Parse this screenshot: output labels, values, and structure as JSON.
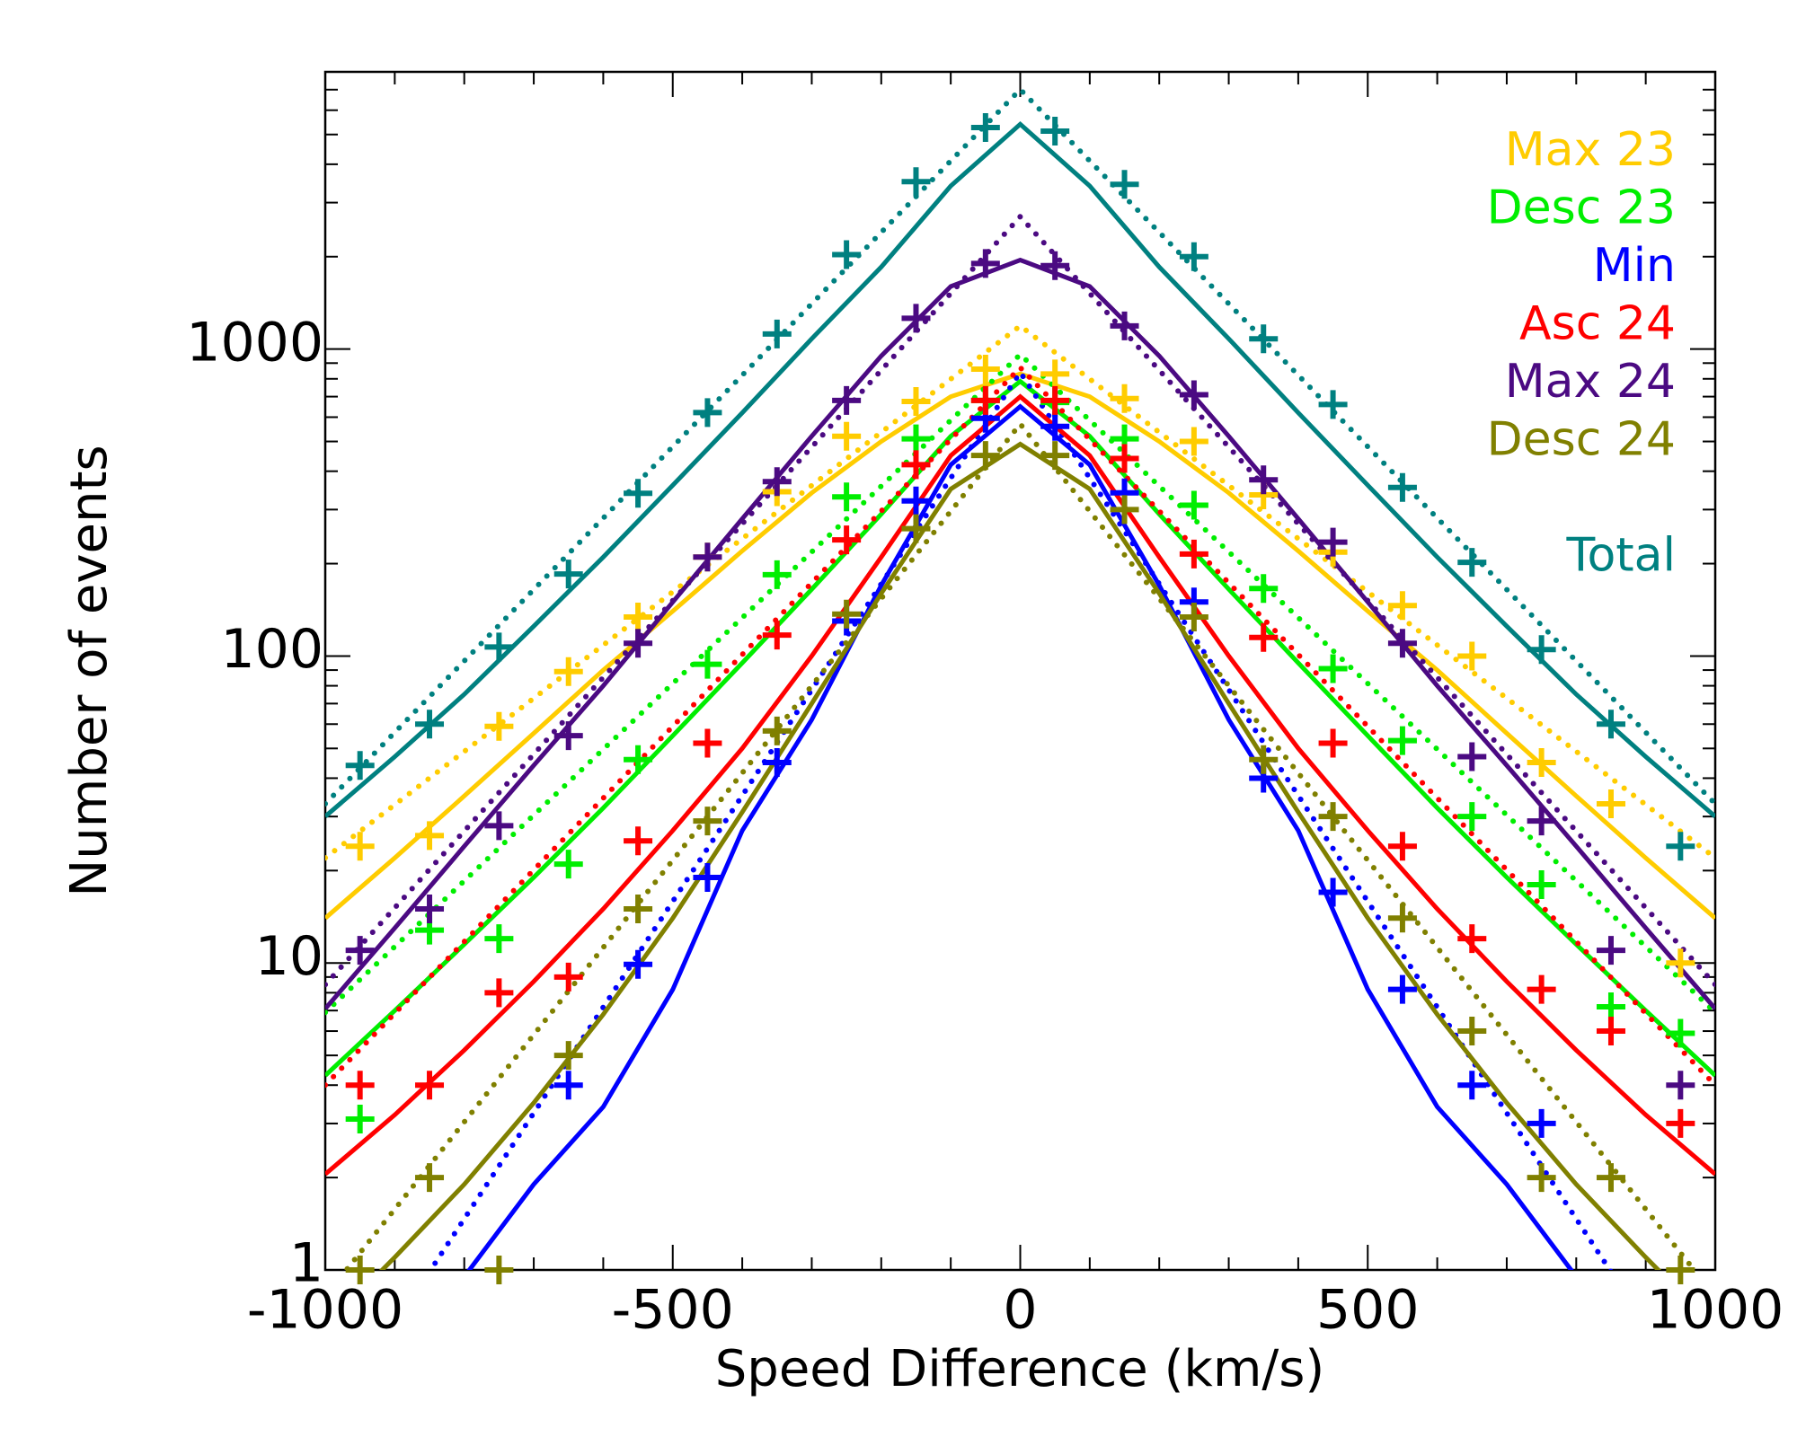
{
  "chart_data": {
    "type": "scatter",
    "xlabel": "Speed Difference (km/s)",
    "ylabel": "Number of events",
    "log_y": true,
    "xlim": [
      -1000,
      1000
    ],
    "ylim": [
      1,
      8000
    ],
    "xticks": [
      -1000,
      -500,
      0,
      500,
      1000
    ],
    "yticks": [
      1,
      10,
      100,
      1000
    ],
    "xminorticks": [
      -900,
      -800,
      -700,
      -600,
      -400,
      -300,
      -200,
      -100,
      100,
      200,
      300,
      400,
      600,
      700,
      800,
      900
    ],
    "yminorticks": [
      2,
      3,
      4,
      5,
      6,
      7,
      8,
      9,
      20,
      30,
      40,
      50,
      60,
      70,
      80,
      90,
      200,
      300,
      400,
      500,
      600,
      700,
      800,
      900,
      2000,
      3000,
      4000,
      5000,
      6000,
      7000,
      8000
    ],
    "x": [
      -950,
      -850,
      -750,
      -650,
      -550,
      -450,
      -350,
      -250,
      -150,
      -50,
      50,
      150,
      250,
      350,
      450,
      550,
      650,
      750,
      850,
      950
    ],
    "fit_x": [
      -1000,
      -900,
      -800,
      -700,
      -600,
      -500,
      -400,
      -300,
      -200,
      -100,
      0,
      100,
      200,
      300,
      400,
      500,
      600,
      700,
      800,
      900,
      1000
    ],
    "dotted_x": [
      -1000,
      0,
      1000
    ],
    "series": [
      {
        "name": "Max 23",
        "color": "#ffcc00",
        "values": [
          24,
          26,
          59,
          89,
          134,
          210,
          343,
          520,
          675,
          860,
          830,
          690,
          500,
          335,
          218,
          146,
          100,
          45,
          33,
          10
        ],
        "fit": [
          14,
          22,
          35,
          56,
          90,
          140,
          220,
          340,
          500,
          700,
          830,
          700,
          500,
          340,
          220,
          140,
          90,
          56,
          35,
          22,
          14
        ],
        "dotted": [
          22,
          1190,
          22
        ]
      },
      {
        "name": "Desc 23",
        "color": "#00ee00",
        "values": [
          3.1,
          12.8,
          12,
          21,
          46,
          94,
          184,
          330,
          510,
          680,
          670,
          510,
          310,
          166,
          91,
          53,
          30,
          18,
          7.2,
          5.9
        ],
        "fit": [
          4.3,
          7,
          11.5,
          19,
          32,
          55,
          95,
          165,
          290,
          520,
          785,
          520,
          290,
          165,
          95,
          55,
          32,
          19,
          11.5,
          7,
          4.3
        ],
        "dotted": [
          6.9,
          960,
          6.9
        ]
      },
      {
        "name": "Min",
        "color": "#0000ff",
        "values": [
          null,
          null,
          null,
          4,
          9.9,
          19,
          45,
          130,
          320,
          595,
          560,
          340,
          150,
          40,
          17,
          8.2,
          4,
          3,
          null,
          null
        ],
        "fit": [
          0.35,
          0.6,
          0.95,
          1.9,
          3.4,
          8.2,
          27,
          62,
          170,
          420,
          650,
          420,
          170,
          62,
          27,
          8.2,
          3.4,
          1.9,
          0.95,
          0.6,
          0.35
        ],
        "dotted": [
          0.3,
          840,
          0.3
        ]
      },
      {
        "name": "Asc 24",
        "color": "#ff0000",
        "values": [
          4,
          4,
          8,
          9,
          25,
          52,
          117,
          239,
          420,
          680,
          680,
          440,
          215,
          115,
          52,
          24,
          12,
          8.2,
          6,
          3
        ],
        "fit": [
          2.05,
          3.2,
          5.2,
          8.7,
          15,
          27,
          50,
          100,
          210,
          450,
          700,
          450,
          210,
          100,
          50,
          27,
          15,
          8.7,
          5.2,
          3.2,
          2.05
        ],
        "dotted": [
          4,
          870,
          4
        ]
      },
      {
        "name": "Max 24",
        "color": "#4b0a82",
        "values": [
          11,
          15,
          28,
          55,
          110,
          210,
          370,
          680,
          1260,
          1900,
          1870,
          1190,
          710,
          375,
          235,
          110,
          47,
          29,
          11,
          4
        ],
        "fit": [
          7.1,
          13,
          24,
          44,
          80,
          150,
          280,
          520,
          950,
          1600,
          1950,
          1600,
          950,
          520,
          280,
          150,
          80,
          44,
          24,
          13,
          7.1
        ],
        "dotted": [
          8.5,
          2700,
          8.5
        ]
      },
      {
        "name": "Desc 24",
        "color": "#808000",
        "values": [
          1,
          2,
          1,
          5,
          15,
          29,
          57,
          137,
          260,
          450,
          450,
          300,
          134,
          46,
          30,
          14,
          6,
          2,
          2,
          1
        ],
        "fit": [
          0.65,
          1.1,
          1.9,
          3.5,
          6.8,
          14,
          31,
          70,
          160,
          350,
          490,
          350,
          160,
          70,
          31,
          14,
          6.8,
          3.5,
          1.9,
          1.1,
          0.65
        ],
        "dotted": [
          0.82,
          570,
          0.82
        ]
      },
      {
        "name": "Total",
        "color": "#008080",
        "values": [
          44,
          60,
          107,
          185,
          339,
          621,
          1120,
          2030,
          3510,
          5270,
          5130,
          3440,
          2000,
          1080,
          660,
          354,
          202,
          105,
          60,
          24
        ],
        "fit": [
          30,
          47,
          75,
          125,
          210,
          360,
          620,
          1080,
          1850,
          3400,
          5400,
          3400,
          1850,
          1080,
          620,
          360,
          210,
          125,
          75,
          47,
          30
        ],
        "dotted": [
          33,
          7010,
          33
        ]
      }
    ]
  }
}
